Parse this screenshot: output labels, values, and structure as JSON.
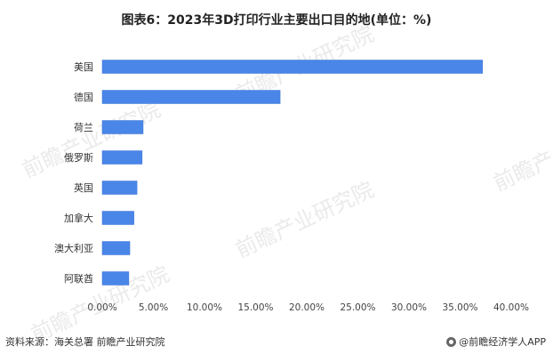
{
  "chart_data": {
    "type": "bar",
    "orientation": "horizontal",
    "title": "图表6：2023年3D打印行业主要出口目的地(单位：%)",
    "categories": [
      "美国",
      "德国",
      "荷兰",
      "俄罗斯",
      "英国",
      "加拿大",
      "澳大利亚",
      "阿联酋"
    ],
    "values": [
      37.2,
      17.4,
      4.0,
      3.9,
      3.4,
      3.1,
      2.7,
      2.6
    ],
    "xlim": [
      0,
      40
    ],
    "xticks": [
      "0.00%",
      "5.00%",
      "10.00%",
      "15.00%",
      "20.00%",
      "25.00%",
      "30.00%",
      "35.00%",
      "40.00%"
    ],
    "grid": false,
    "bar_color": "#4a86e8"
  },
  "footer": {
    "source": "资料来源：海关总署 前瞻产业研究院",
    "brand": "@前瞻经济学人APP"
  },
  "watermark": {
    "text": "前瞻产业研究院"
  }
}
